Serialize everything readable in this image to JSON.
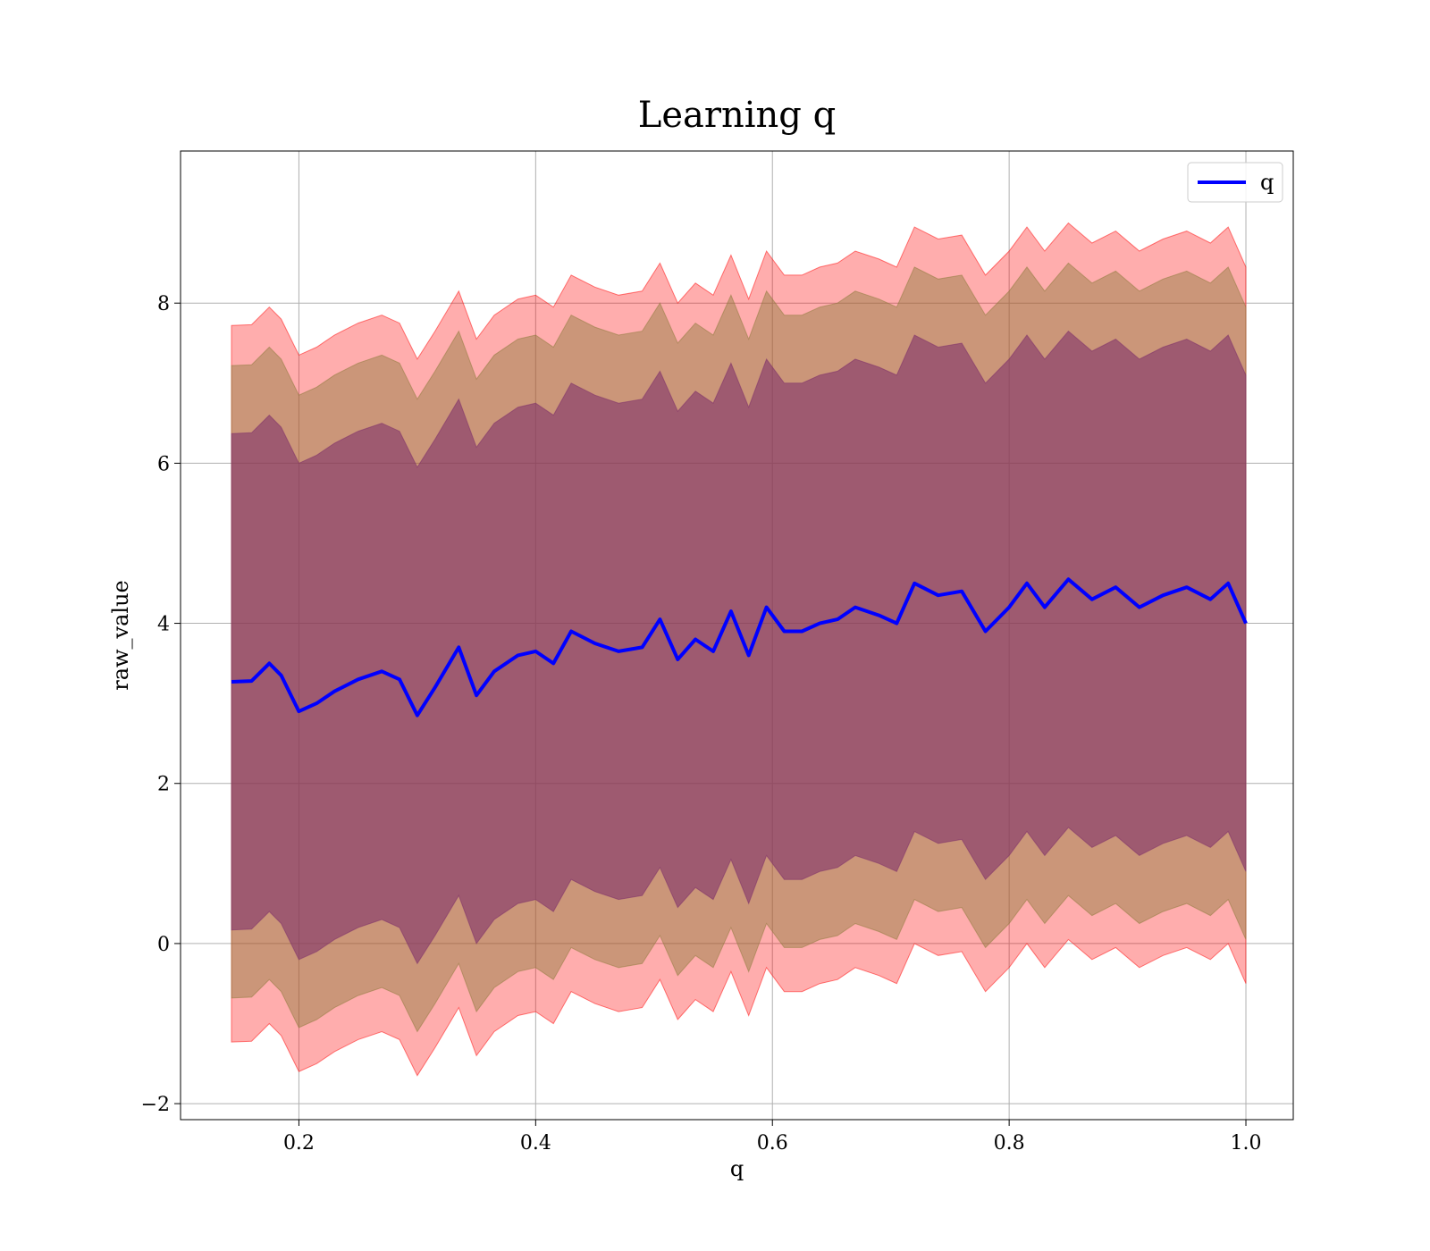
{
  "chart_data": {
    "type": "area",
    "title": "Learning q",
    "xlabel": "q",
    "ylabel": "raw_value",
    "xlim": [
      0.1,
      1.04
    ],
    "ylim": [
      -2.2,
      9.9
    ],
    "x_ticks": [
      0.2,
      0.4,
      0.6,
      0.8,
      1.0
    ],
    "x_tick_labels": [
      "0.2",
      "0.4",
      "0.6",
      "0.8",
      "1.0"
    ],
    "y_ticks": [
      -2,
      0,
      2,
      4,
      6,
      8
    ],
    "y_tick_labels": [
      "−2",
      "0",
      "2",
      "4",
      "6",
      "8"
    ],
    "grid": true,
    "legend": {
      "position": "top-right",
      "entries": [
        "q"
      ]
    },
    "colors": {
      "line": "#0000ff",
      "band_fill": "#ff0000",
      "band_outer_opacity": 0.32,
      "band_middle_overlay": "#8b7a3a",
      "band_inner_overlay": "#7a2a6a"
    },
    "x": [
      0.143,
      0.16,
      0.175,
      0.185,
      0.2,
      0.215,
      0.23,
      0.25,
      0.27,
      0.285,
      0.3,
      0.315,
      0.335,
      0.35,
      0.365,
      0.385,
      0.4,
      0.415,
      0.43,
      0.45,
      0.47,
      0.49,
      0.505,
      0.52,
      0.535,
      0.55,
      0.565,
      0.58,
      0.595,
      0.61,
      0.625,
      0.64,
      0.655,
      0.67,
      0.69,
      0.705,
      0.72,
      0.74,
      0.76,
      0.78,
      0.8,
      0.815,
      0.83,
      0.85,
      0.87,
      0.89,
      0.91,
      0.93,
      0.95,
      0.97,
      0.985,
      1.0
    ],
    "series": [
      {
        "name": "q",
        "values": [
          3.27,
          3.28,
          3.5,
          3.35,
          2.9,
          3.0,
          3.15,
          3.3,
          3.4,
          3.3,
          2.85,
          3.2,
          3.7,
          3.1,
          3.4,
          3.6,
          3.65,
          3.5,
          3.9,
          3.75,
          3.65,
          3.7,
          4.05,
          3.55,
          3.8,
          3.65,
          4.15,
          3.6,
          4.2,
          3.9,
          3.9,
          4.0,
          4.05,
          4.2,
          4.1,
          4.0,
          4.5,
          4.35,
          4.4,
          3.9,
          4.2,
          4.5,
          4.2,
          4.55,
          4.3,
          4.45,
          4.2,
          4.35,
          4.45,
          4.3,
          4.5,
          4.0
        ]
      }
    ],
    "bands": [
      {
        "level": "outer",
        "upper_offset": 4.45,
        "lower_offset": -4.5
      },
      {
        "level": "middle",
        "upper_offset": 3.95,
        "lower_offset": -3.95
      },
      {
        "level": "inner",
        "upper_offset": 3.1,
        "lower_offset": -3.1
      }
    ]
  }
}
